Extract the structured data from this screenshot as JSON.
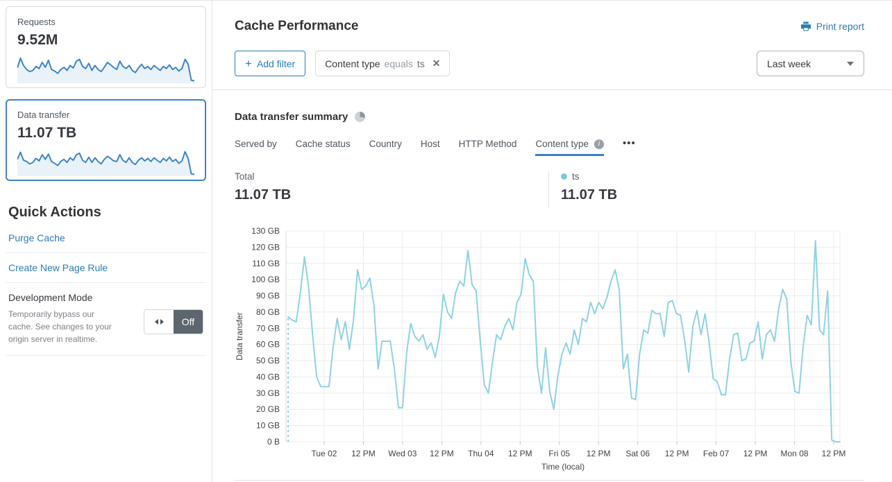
{
  "sidebar": {
    "cards": [
      {
        "label": "Requests",
        "value": "9.52M",
        "selected": false,
        "spark": [
          50,
          82,
          58,
          45,
          38,
          42,
          55,
          48,
          68,
          52,
          75,
          45,
          40,
          32,
          45,
          52,
          42,
          58,
          50,
          72,
          78,
          55,
          48,
          65,
          42,
          58,
          45,
          38,
          52,
          68,
          60,
          52,
          45,
          72,
          55,
          48,
          58,
          42,
          35,
          50,
          62,
          48,
          55,
          45,
          58,
          50,
          42,
          55,
          48,
          60,
          45,
          52,
          40,
          48,
          78,
          62,
          10,
          8
        ]
      },
      {
        "label": "Data transfer",
        "value": "11.07 TB",
        "selected": true,
        "spark": [
          55,
          78,
          52,
          48,
          40,
          45,
          58,
          50,
          70,
          55,
          72,
          48,
          42,
          35,
          48,
          55,
          45,
          60,
          52,
          70,
          75,
          52,
          45,
          62,
          45,
          60,
          48,
          40,
          55,
          65,
          58,
          50,
          48,
          70,
          52,
          45,
          60,
          45,
          38,
          52,
          60,
          50,
          58,
          48,
          60,
          52,
          45,
          58,
          50,
          62,
          48,
          55,
          42,
          50,
          80,
          58,
          8,
          6
        ]
      }
    ],
    "quick_actions": {
      "title": "Quick Actions",
      "links": [
        "Purge Cache",
        "Create New Page Rule"
      ],
      "dev_mode": {
        "title": "Development Mode",
        "description": "Temporarily bypass our cache. See changes to your origin server in realtime.",
        "state_label": "Off"
      }
    }
  },
  "header": {
    "title": "Cache Performance",
    "print": "Print report"
  },
  "toolbar": {
    "add_filter": "Add filter",
    "filter": {
      "field": "Content type",
      "operator": "equals",
      "value": "ts"
    },
    "time_range": "Last week"
  },
  "summary": {
    "title": "Data transfer summary",
    "tabs": [
      "Served by",
      "Cache status",
      "Country",
      "Host",
      "HTTP Method",
      "Content type"
    ],
    "active_tab": "Content type",
    "more": "•••",
    "total_label": "Total",
    "total_value": "11.07 TB",
    "legend": {
      "name": "ts",
      "value": "11.07 TB",
      "color": "#7cc9de"
    }
  },
  "chart_data": {
    "type": "line",
    "title": "Data transfer summary",
    "xlabel": "Time (local)",
    "ylabel": "Data transfer",
    "ylim": [
      0,
      130
    ],
    "y_unit": "GB",
    "grid": true,
    "start_dashed": true,
    "y_ticks": [
      "0 B",
      "10 GB",
      "20 GB",
      "30 GB",
      "40 GB",
      "50 GB",
      "60 GB",
      "70 GB",
      "80 GB",
      "90 GB",
      "100 GB",
      "110 GB",
      "120 GB",
      "130 GB"
    ],
    "x_ticks": [
      "Tue 02",
      "12 PM",
      "Wed 03",
      "12 PM",
      "Thu 04",
      "12 PM",
      "Fri 05",
      "12 PM",
      "Sat 06",
      "12 PM",
      "Feb 07",
      "12 PM",
      "Mon 08",
      "12 PM"
    ],
    "series": [
      {
        "name": "ts",
        "color": "#8fd2e0",
        "values": [
          77,
          75,
          74,
          92,
          114,
          96,
          66,
          40,
          34,
          34,
          34,
          58,
          76,
          63,
          74,
          57,
          75,
          106,
          94,
          96,
          101,
          84,
          45,
          62,
          62,
          62,
          45,
          21,
          21,
          55,
          73,
          65,
          62,
          66,
          57,
          61,
          52,
          65,
          91,
          80,
          76,
          92,
          99,
          96,
          118,
          97,
          93,
          62,
          35,
          30,
          49,
          66,
          63,
          71,
          76,
          69,
          86,
          91,
          113,
          103,
          99,
          46,
          30,
          58,
          31,
          20,
          41,
          54,
          61,
          54,
          69,
          60,
          76,
          74,
          86,
          79,
          86,
          82,
          89,
          99,
          106,
          94,
          45,
          54,
          27,
          26,
          54,
          69,
          67,
          81,
          79,
          79,
          65,
          86,
          87,
          79,
          78,
          63,
          43,
          71,
          81,
          66,
          79,
          61,
          39,
          37,
          29,
          29,
          51,
          66,
          67,
          50,
          51,
          61,
          62,
          74,
          51,
          66,
          69,
          62,
          82,
          94,
          88,
          49,
          31,
          30,
          59,
          78,
          72,
          124,
          69,
          66,
          93,
          1,
          0,
          0
        ]
      }
    ]
  },
  "colors": {
    "accent": "#2c7cb0",
    "spark_stroke": "#3b82c4",
    "spark_fill": "#eaf2f9",
    "tab_underline": "#3b82c4"
  }
}
